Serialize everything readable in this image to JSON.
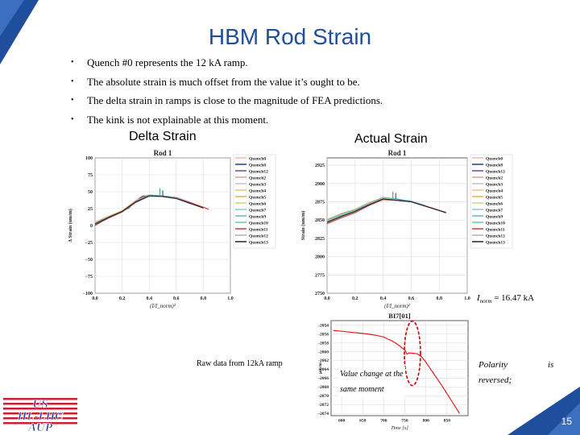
{
  "slide": {
    "title": "HBM Rod Strain",
    "bullets": [
      "Quench #0 represents the 12 kA ramp.",
      "The absolute strain is much offset from the value it’s ought to be.",
      "The delta strain in ramps is close to the magnitude of FEA predictions.",
      "The kink is not explainable at this moment."
    ],
    "left_heading": "Delta Strain",
    "right_heading": "Actual Strain",
    "inorm_label": "I",
    "inorm_sub": "norm",
    "inorm_value": " = 16.47 kA",
    "raw_data_label": "Raw data from 12kA ramp",
    "annotation_line1": "Value change at the",
    "annotation_line2": "same moment",
    "polarity_word": "Polarity",
    "is_word": "is",
    "reversed_word": "reversed;",
    "page_number": "15",
    "logo_text": [
      "US",
      "HL-LHC",
      "AUP"
    ]
  },
  "chart_data": [
    {
      "type": "line",
      "title": "Rod 1",
      "xlabel": "(I/I_norm)²",
      "ylabel": "Δ Strain (um/m)",
      "xlim": [
        0.0,
        1.0
      ],
      "ylim": [
        -100,
        100
      ],
      "xticks": [
        "0.0",
        "0.2",
        "0.4",
        "0.6",
        "0.8",
        "1.0"
      ],
      "yticks": [
        "100",
        "75",
        "50",
        "25",
        "0",
        "−25",
        "−50",
        "−75",
        "−100"
      ],
      "grid": true,
      "legend_position": "right",
      "series": [
        {
          "name": "Quench0",
          "color": "#f2b6b6",
          "x": [
            0.0,
            0.05,
            0.1,
            0.15,
            0.2,
            0.25,
            0.3,
            0.35,
            0.4,
            0.5,
            0.6,
            0.7,
            0.8
          ],
          "y": [
            3,
            8,
            13,
            17,
            22,
            27,
            37,
            44,
            45,
            44,
            42,
            35,
            27
          ]
        },
        {
          "name": "Quench8",
          "color": "#1f3a93",
          "x": [
            0.0,
            0.05,
            0.1,
            0.15,
            0.2,
            0.25,
            0.3,
            0.35,
            0.4,
            0.5,
            0.6,
            0.7,
            0.8
          ],
          "y": [
            2,
            7,
            12,
            16,
            21,
            26,
            36,
            43,
            44,
            43,
            41,
            34,
            26
          ]
        },
        {
          "name": "Quench12",
          "color": "#7b3fa0",
          "x": [
            0.0,
            0.1,
            0.2,
            0.3,
            0.4,
            0.5,
            0.6,
            0.7
          ],
          "y": [
            3,
            12,
            20,
            35,
            44,
            43,
            40,
            33
          ]
        },
        {
          "name": "Quench2",
          "color": "#e09a9a",
          "x": [
            0.0,
            0.1,
            0.2,
            0.3,
            0.4,
            0.5,
            0.6
          ],
          "y": [
            4,
            13,
            21,
            36,
            45,
            44,
            41
          ]
        },
        {
          "name": "Quench3",
          "color": "#c0c0c0",
          "x": [
            0.0,
            0.1,
            0.2,
            0.3,
            0.4,
            0.5,
            0.6,
            0.7
          ],
          "y": [
            1,
            11,
            20,
            34,
            43,
            43,
            40,
            34
          ]
        },
        {
          "name": "Quench4",
          "color": "#f5c16c",
          "x": [
            0.0,
            0.1,
            0.2,
            0.3,
            0.4,
            0.5
          ],
          "y": [
            5,
            14,
            22,
            37,
            45,
            44
          ]
        },
        {
          "name": "Quench5",
          "color": "#e8b04a",
          "x": [
            0.0,
            0.1,
            0.2,
            0.3,
            0.4
          ],
          "y": [
            2,
            12,
            21,
            35,
            44
          ]
        },
        {
          "name": "Quench6",
          "color": "#c9d87a",
          "x": [
            0.0,
            0.1,
            0.2,
            0.3,
            0.4,
            0.5
          ],
          "y": [
            3,
            12,
            22,
            36,
            44,
            43
          ]
        },
        {
          "name": "Quench7",
          "color": "#8ac6e0",
          "x": [
            0.0,
            0.1,
            0.2,
            0.3,
            0.4,
            0.5,
            0.6
          ],
          "y": [
            2,
            11,
            20,
            35,
            44,
            43,
            40
          ]
        },
        {
          "name": "Quench9",
          "color": "#5fb4d6",
          "x": [
            0.0,
            0.1,
            0.2,
            0.3,
            0.4,
            0.5,
            0.6,
            0.7
          ],
          "y": [
            4,
            13,
            21,
            36,
            45,
            44,
            41,
            34
          ]
        },
        {
          "name": "Quench10",
          "color": "#6fc4a0",
          "x": [
            0.0,
            0.1,
            0.2,
            0.3,
            0.4,
            0.5,
            0.6
          ],
          "y": [
            1,
            11,
            20,
            34,
            43,
            43,
            40
          ]
        },
        {
          "name": "Quench11",
          "color": "#d63b3b",
          "x": [
            0.0,
            0.05,
            0.1,
            0.2,
            0.3,
            0.4,
            0.5,
            0.6,
            0.7,
            0.8,
            0.84
          ],
          "y": [
            0,
            6,
            11,
            20,
            34,
            44,
            43,
            40,
            34,
            27,
            24
          ]
        },
        {
          "name": "Quench12",
          "color": "#b0b0b0",
          "x": [
            0.0,
            0.1,
            0.2,
            0.3,
            0.4,
            0.5,
            0.6
          ],
          "y": [
            2,
            12,
            21,
            35,
            44,
            43,
            40
          ]
        },
        {
          "name": "Quench13",
          "color": "#222222",
          "x": [
            0.0,
            0.1,
            0.2,
            0.3,
            0.4,
            0.5,
            0.6,
            0.7,
            0.8
          ],
          "y": [
            2,
            12,
            21,
            35,
            44,
            43,
            40,
            33,
            26
          ]
        }
      ],
      "spikes": [
        {
          "x": 0.48,
          "y0": 45,
          "y1": 55,
          "color": "#2a9d4a"
        },
        {
          "x": 0.5,
          "y0": 44,
          "y1": 52,
          "color": "#1f3a93"
        }
      ]
    },
    {
      "type": "line",
      "title": "Rod 1",
      "xlabel": "(I/I_norm)²",
      "ylabel": "Strain (um/m)",
      "xlim": [
        0.0,
        1.0
      ],
      "ylim": [
        2750,
        2935
      ],
      "xticks": [
        "0.0",
        "0.2",
        "0.4",
        "0.6",
        "0.8",
        "1.0"
      ],
      "yticks": [
        "2925",
        "2900",
        "2875",
        "2850",
        "2825",
        "2800",
        "2775",
        "2750"
      ],
      "grid": true,
      "legend_position": "right",
      "series": [
        {
          "name": "Quench0",
          "color": "#f2b6b6",
          "x": [
            0.0,
            0.1,
            0.2,
            0.3,
            0.4,
            0.5,
            0.6,
            0.7,
            0.8,
            0.85
          ],
          "y": [
            2848,
            2856,
            2862,
            2872,
            2880,
            2878,
            2876,
            2870,
            2864,
            2861
          ]
        },
        {
          "name": "Quench8",
          "color": "#1f3a93",
          "x": [
            0.0,
            0.1,
            0.2,
            0.3,
            0.4,
            0.5,
            0.6,
            0.7,
            0.8,
            0.85
          ],
          "y": [
            2847,
            2855,
            2861,
            2871,
            2879,
            2877,
            2875,
            2869,
            2863,
            2860
          ]
        },
        {
          "name": "Quench12",
          "color": "#7b3fa0",
          "x": [
            0.0,
            0.1,
            0.2,
            0.3,
            0.4,
            0.5,
            0.6
          ],
          "y": [
            2849,
            2857,
            2863,
            2872,
            2880,
            2878,
            2876
          ]
        },
        {
          "name": "Quench2",
          "color": "#e09a9a",
          "x": [
            0.0,
            0.1,
            0.2,
            0.3,
            0.4,
            0.5
          ],
          "y": [
            2850,
            2858,
            2864,
            2873,
            2881,
            2879
          ]
        },
        {
          "name": "Quench3",
          "color": "#c0c0c0",
          "x": [
            0.0,
            0.1,
            0.2,
            0.3,
            0.4,
            0.5,
            0.6,
            0.7
          ],
          "y": [
            2846,
            2854,
            2861,
            2870,
            2878,
            2877,
            2875,
            2869
          ]
        },
        {
          "name": "Quench4",
          "color": "#f5c16c",
          "x": [
            0.0,
            0.1,
            0.2,
            0.3,
            0.4
          ],
          "y": [
            2851,
            2859,
            2865,
            2874,
            2881
          ]
        },
        {
          "name": "Quench5",
          "color": "#e8b04a",
          "x": [
            0.0,
            0.1,
            0.2,
            0.3,
            0.4
          ],
          "y": [
            2848,
            2856,
            2863,
            2872,
            2880
          ]
        },
        {
          "name": "Quench6",
          "color": "#c9d87a",
          "x": [
            0.0,
            0.1,
            0.2,
            0.3,
            0.4,
            0.5
          ],
          "y": [
            2849,
            2857,
            2863,
            2872,
            2880,
            2878
          ]
        },
        {
          "name": "Quench7",
          "color": "#8ac6e0",
          "x": [
            0.0,
            0.1,
            0.2,
            0.3,
            0.4,
            0.5,
            0.6
          ],
          "y": [
            2847,
            2855,
            2862,
            2871,
            2879,
            2877,
            2875
          ]
        },
        {
          "name": "Quench9",
          "color": "#5fb4d6",
          "x": [
            0.0,
            0.1,
            0.2,
            0.3,
            0.4,
            0.5,
            0.6,
            0.7
          ],
          "y": [
            2850,
            2858,
            2864,
            2873,
            2881,
            2879,
            2876,
            2870
          ]
        },
        {
          "name": "Quench10",
          "color": "#6fc4a0",
          "x": [
            0.0,
            0.1,
            0.2,
            0.3,
            0.4,
            0.5,
            0.6
          ],
          "y": [
            2846,
            2854,
            2861,
            2870,
            2878,
            2877,
            2875
          ]
        },
        {
          "name": "Quench11",
          "color": "#d63b3b",
          "x": [
            0.0,
            0.1,
            0.2,
            0.3,
            0.4,
            0.5,
            0.6,
            0.7,
            0.8,
            0.85
          ],
          "y": [
            2845,
            2853,
            2860,
            2870,
            2878,
            2877,
            2875,
            2869,
            2863,
            2860
          ]
        },
        {
          "name": "Quench12",
          "color": "#b0b0b0",
          "x": [
            0.0,
            0.1,
            0.2,
            0.3,
            0.4,
            0.5,
            0.6
          ],
          "y": [
            2848,
            2856,
            2862,
            2871,
            2879,
            2877,
            2875
          ]
        },
        {
          "name": "Quench13",
          "color": "#222222",
          "x": [
            0.0,
            0.1,
            0.2,
            0.3,
            0.4,
            0.5,
            0.6,
            0.7,
            0.8,
            0.85
          ],
          "y": [
            2847,
            2855,
            2862,
            2871,
            2879,
            2877,
            2875,
            2869,
            2863,
            2860
          ]
        }
      ],
      "spikes": [
        {
          "x": 0.47,
          "y0": 2880,
          "y1": 2889,
          "color": "#2a9d4a"
        },
        {
          "x": 0.49,
          "y0": 2879,
          "y1": 2887,
          "color": "#1f3a93"
        }
      ]
    },
    {
      "type": "line",
      "title": "BI7[01]",
      "xlabel": "Time [s]",
      "ylabel": "µm/m",
      "xlim": [
        575,
        900
      ],
      "ylim": [
        -2074.5,
        -2053
      ],
      "xticks": [
        "600",
        "650",
        "700",
        "750",
        "800",
        "850"
      ],
      "yticks": [
        "-2054",
        "-2056",
        "-2058",
        "-2060",
        "-2062",
        "-2064",
        "-2066",
        "-2068",
        "-2070",
        "-2072",
        "-2074"
      ],
      "grid": true,
      "series": [
        {
          "name": "",
          "color": "#e02020",
          "x": [
            580,
            600,
            620,
            640,
            660,
            680,
            700,
            710,
            720,
            730,
            740,
            745,
            750,
            755,
            760,
            770,
            780,
            790,
            800,
            810,
            820,
            830,
            840,
            850,
            860,
            870,
            880
          ],
          "y": [
            -2055.2,
            -2055.4,
            -2055.6,
            -2055.8,
            -2056.0,
            -2056.3,
            -2056.7,
            -2057.2,
            -2057.6,
            -2058.2,
            -2058.9,
            -2059.3,
            -2059.6,
            -2060.6,
            -2060.3,
            -2060.4,
            -2060.5,
            -2061.2,
            -2062.4,
            -2063.8,
            -2065.2,
            -2066.6,
            -2068.0,
            -2069.5,
            -2071.0,
            -2072.5,
            -2074.0
          ]
        }
      ],
      "highlight": {
        "x": 768,
        "y": -2060.4
      }
    }
  ]
}
